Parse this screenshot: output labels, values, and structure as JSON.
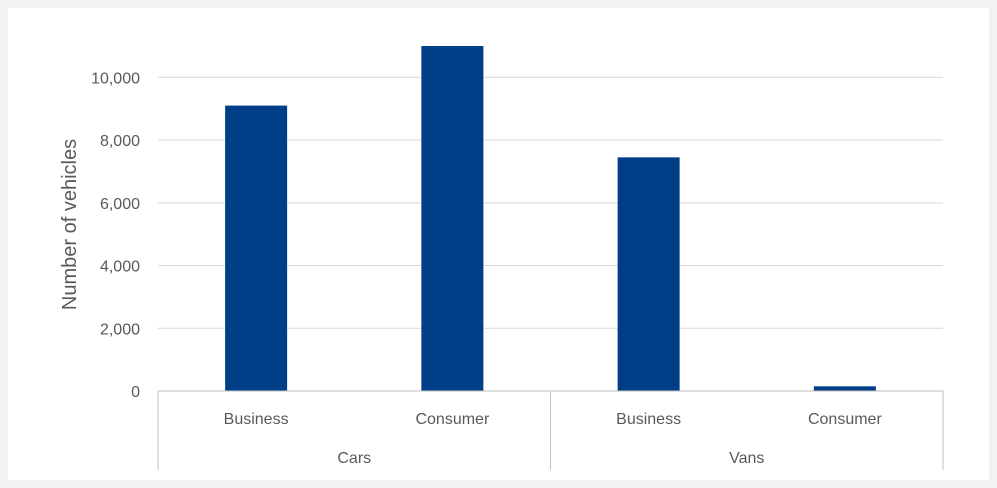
{
  "chart_data": {
    "type": "bar",
    "ylabel": "Number of vehicles",
    "ylim": [
      0,
      11000
    ],
    "yticks": [
      0,
      2000,
      4000,
      6000,
      8000,
      10000
    ],
    "ytick_labels": [
      "0",
      "2,000",
      "4,000",
      "6,000",
      "8,000",
      "10,000"
    ],
    "grid": true,
    "groups": [
      {
        "label": "Cars",
        "categories": [
          "Business",
          "Consumer"
        ],
        "values": [
          9100,
          11000
        ]
      },
      {
        "label": "Vans",
        "categories": [
          "Business",
          "Consumer"
        ],
        "values": [
          7450,
          150
        ]
      }
    ],
    "colors": {
      "bar": "#003f87"
    }
  }
}
